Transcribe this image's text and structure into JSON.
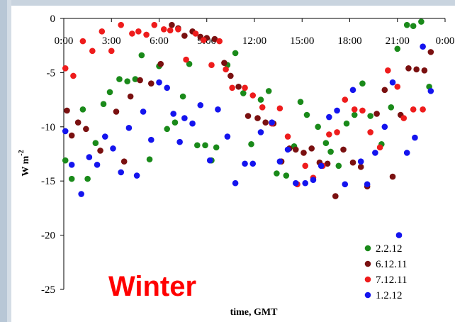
{
  "chart_data": {
    "type": "scatter",
    "annotation": "Winter",
    "xlabel": "time, GMT",
    "ylabel": "W m",
    "ylabel_superscript": "-2",
    "xlim": [
      0,
      24
    ],
    "ylim": [
      -25,
      0
    ],
    "x_ticks": [
      0,
      3,
      6,
      9,
      12,
      15,
      18,
      21,
      24
    ],
    "x_tick_labels": [
      "0:00",
      "3:00",
      "6:00",
      "9:00",
      "12:00",
      "15:00",
      "18:00",
      "21:00",
      "0:00"
    ],
    "y_ticks": [
      0,
      -5,
      -10,
      -15,
      -20,
      -25
    ],
    "y_tick_labels": [
      "0",
      "-5",
      "-10",
      "-15",
      "-20",
      "-25"
    ],
    "legend_position": "bottom-right",
    "series": [
      {
        "name": "2.2.12",
        "color": "#1a8a1a",
        "points": [
          [
            0.1,
            -13.1
          ],
          [
            0.5,
            -14.8
          ],
          [
            1.2,
            -8.4
          ],
          [
            1.5,
            -14.8
          ],
          [
            2.0,
            -11.5
          ],
          [
            2.5,
            -7.9
          ],
          [
            2.9,
            -6.8
          ],
          [
            3.5,
            -5.6
          ],
          [
            4.0,
            -5.8
          ],
          [
            4.5,
            -5.6
          ],
          [
            4.9,
            -3.4
          ],
          [
            5.4,
            -13.0
          ],
          [
            6.0,
            -4.4
          ],
          [
            6.5,
            -10.2
          ],
          [
            7.0,
            -9.6
          ],
          [
            7.5,
            -7.2
          ],
          [
            7.9,
            -4.2
          ],
          [
            8.4,
            -11.7
          ],
          [
            8.9,
            -11.7
          ],
          [
            9.3,
            -13.1
          ],
          [
            9.6,
            -11.9
          ],
          [
            10.3,
            -4.3
          ],
          [
            10.8,
            -3.2
          ],
          [
            11.3,
            -6.9
          ],
          [
            11.8,
            -11.6
          ],
          [
            12.4,
            -7.5
          ],
          [
            12.9,
            -6.7
          ],
          [
            13.4,
            -14.3
          ],
          [
            14.0,
            -14.5
          ],
          [
            14.5,
            -11.8
          ],
          [
            14.9,
            -7.7
          ],
          [
            15.3,
            -8.9
          ],
          [
            16.0,
            -10.0
          ],
          [
            16.5,
            -11.5
          ],
          [
            16.8,
            -12.3
          ],
          [
            17.3,
            -13.6
          ],
          [
            17.8,
            -9.7
          ],
          [
            18.3,
            -8.9
          ],
          [
            18.8,
            -6.0
          ],
          [
            19.3,
            -9.0
          ],
          [
            20.0,
            -11.6
          ],
          [
            20.6,
            -8.2
          ],
          [
            21.0,
            -2.8
          ],
          [
            21.6,
            -0.6
          ],
          [
            22.0,
            -0.7
          ],
          [
            22.5,
            -0.3
          ],
          [
            23.0,
            -6.3
          ]
        ]
      },
      {
        "name": "6.12.11",
        "color": "#7a1010",
        "points": [
          [
            0.2,
            -8.5
          ],
          [
            0.5,
            -10.8
          ],
          [
            0.9,
            -9.6
          ],
          [
            1.4,
            -10.2
          ],
          [
            2.3,
            -12.2
          ],
          [
            3.3,
            -8.6
          ],
          [
            3.8,
            -13.2
          ],
          [
            4.2,
            -7.2
          ],
          [
            4.8,
            -5.7
          ],
          [
            5.5,
            -6.0
          ],
          [
            6.1,
            -4.2
          ],
          [
            6.8,
            -0.6
          ],
          [
            7.2,
            -0.9
          ],
          [
            7.6,
            -1.6
          ],
          [
            8.1,
            -1.2
          ],
          [
            8.6,
            -1.7
          ],
          [
            9.0,
            -1.8
          ],
          [
            9.5,
            -1.9
          ],
          [
            10.1,
            -4.1
          ],
          [
            10.5,
            -5.3
          ],
          [
            11.0,
            -6.3
          ],
          [
            11.6,
            -9.0
          ],
          [
            12.2,
            -9.2
          ],
          [
            12.7,
            -9.6
          ],
          [
            13.2,
            -9.7
          ],
          [
            13.7,
            -13.2
          ],
          [
            14.2,
            -12.0
          ],
          [
            14.6,
            -12.1
          ],
          [
            15.1,
            -12.4
          ],
          [
            15.6,
            -12.0
          ],
          [
            16.1,
            -13.3
          ],
          [
            16.6,
            -13.4
          ],
          [
            17.1,
            -16.4
          ],
          [
            17.6,
            -12.1
          ],
          [
            18.2,
            -13.3
          ],
          [
            18.7,
            -13.7
          ],
          [
            19.1,
            -15.5
          ],
          [
            19.7,
            -8.8
          ],
          [
            20.2,
            -6.6
          ],
          [
            20.7,
            -14.6
          ],
          [
            21.2,
            -8.9
          ],
          [
            21.7,
            -4.6
          ],
          [
            22.2,
            -4.7
          ],
          [
            22.7,
            -4.8
          ],
          [
            23.1,
            -3.1
          ]
        ]
      },
      {
        "name": "7.12.11",
        "color": "#ee1c1c",
        "points": [
          [
            0.1,
            -4.6
          ],
          [
            0.6,
            -5.3
          ],
          [
            1.2,
            -2.1
          ],
          [
            1.8,
            -3.0
          ],
          [
            2.4,
            -1.2
          ],
          [
            3.0,
            -3.0
          ],
          [
            3.6,
            -0.6
          ],
          [
            4.3,
            -1.4
          ],
          [
            4.7,
            -1.2
          ],
          [
            5.2,
            -1.5
          ],
          [
            5.7,
            -0.6
          ],
          [
            6.3,
            -1.0
          ],
          [
            6.7,
            -1.1
          ],
          [
            7.2,
            -1.0
          ],
          [
            7.7,
            -3.8
          ],
          [
            8.3,
            -1.4
          ],
          [
            8.8,
            -2.0
          ],
          [
            9.3,
            -4.3
          ],
          [
            9.8,
            -2.1
          ],
          [
            10.2,
            -4.7
          ],
          [
            10.6,
            -6.4
          ],
          [
            11.4,
            -6.4
          ],
          [
            11.9,
            -7.1
          ],
          [
            12.5,
            -8.2
          ],
          [
            13.1,
            -9.7
          ],
          [
            13.6,
            -8.3
          ],
          [
            14.1,
            -10.9
          ],
          [
            14.7,
            -15.3
          ],
          [
            15.2,
            -13.6
          ],
          [
            15.7,
            -14.7
          ],
          [
            16.3,
            -13.6
          ],
          [
            16.7,
            -10.7
          ],
          [
            17.2,
            -10.5
          ],
          [
            17.7,
            -7.5
          ],
          [
            18.3,
            -8.4
          ],
          [
            18.8,
            -8.5
          ],
          [
            19.3,
            -10.5
          ],
          [
            19.9,
            -11.9
          ],
          [
            20.4,
            -4.8
          ],
          [
            21.0,
            -6.3
          ],
          [
            21.4,
            -9.2
          ],
          [
            22.0,
            -8.4
          ],
          [
            22.6,
            -8.4
          ]
        ]
      },
      {
        "name": "1.2.12",
        "color": "#1414ee",
        "points": [
          [
            0.1,
            -10.4
          ],
          [
            0.5,
            -13.5
          ],
          [
            1.1,
            -16.2
          ],
          [
            1.6,
            -12.8
          ],
          [
            2.1,
            -13.5
          ],
          [
            2.6,
            -10.9
          ],
          [
            3.1,
            -12.0
          ],
          [
            3.6,
            -14.2
          ],
          [
            4.1,
            -10.1
          ],
          [
            4.6,
            -14.5
          ],
          [
            5.0,
            -8.6
          ],
          [
            5.5,
            -11.2
          ],
          [
            6.0,
            -5.9
          ],
          [
            6.5,
            -6.4
          ],
          [
            6.9,
            -8.8
          ],
          [
            7.3,
            -11.4
          ],
          [
            7.6,
            -9.2
          ],
          [
            8.1,
            -9.7
          ],
          [
            8.6,
            -8.0
          ],
          [
            9.2,
            -13.1
          ],
          [
            9.7,
            -8.4
          ],
          [
            10.3,
            -10.9
          ],
          [
            10.8,
            -15.2
          ],
          [
            11.4,
            -13.4
          ],
          [
            11.9,
            -13.4
          ],
          [
            12.4,
            -10.5
          ],
          [
            13.1,
            -9.6
          ],
          [
            13.6,
            -13.2
          ],
          [
            14.1,
            -12.1
          ],
          [
            14.6,
            -15.2
          ],
          [
            15.2,
            -15.2
          ],
          [
            15.7,
            -14.9
          ],
          [
            16.2,
            -13.6
          ],
          [
            16.7,
            -9.1
          ],
          [
            17.2,
            -8.5
          ],
          [
            17.7,
            -15.3
          ],
          [
            18.2,
            -6.6
          ],
          [
            18.7,
            -13.2
          ],
          [
            19.1,
            -15.3
          ],
          [
            19.6,
            -12.4
          ],
          [
            20.2,
            -10.0
          ],
          [
            20.7,
            -5.9
          ],
          [
            21.1,
            -20.0
          ],
          [
            21.6,
            -12.4
          ],
          [
            22.1,
            -11.0
          ],
          [
            22.6,
            -2.6
          ],
          [
            23.1,
            -6.7
          ]
        ]
      }
    ]
  }
}
